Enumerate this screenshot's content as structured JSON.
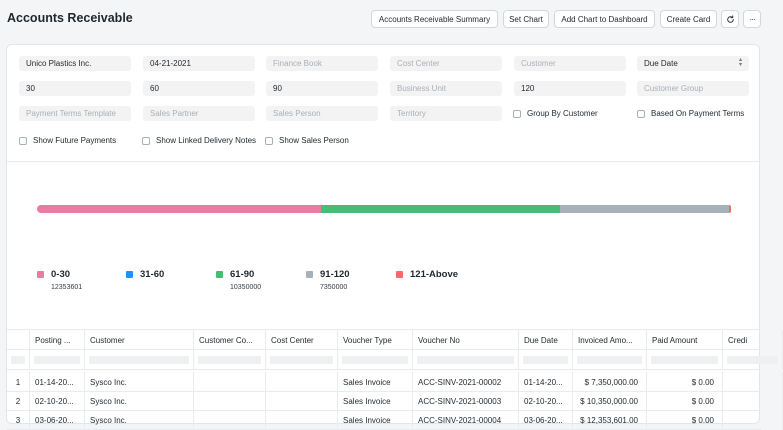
{
  "header": {
    "title": "Accounts Receivable",
    "buttons": {
      "summary": "Accounts Receivable Summary",
      "set_chart": "Set Chart",
      "add_chart": "Add Chart to Dashboard",
      "create_card": "Create Card",
      "refresh_icon": "refresh-icon",
      "more_icon": "ellipsis-icon",
      "more_label": "···"
    }
  },
  "filters": {
    "company": "Unico Plastics Inc.",
    "report_date": "04-21-2021",
    "finance_book_ph": "Finance Book",
    "cost_center_ph": "Cost Center",
    "customer_ph": "Customer",
    "ageing_based_on": "Due Date",
    "range1": "30",
    "range2": "60",
    "range3": "90",
    "business_unit_ph": "Business Unit",
    "range4": "120",
    "customer_group_ph": "Customer Group",
    "payment_terms_template_ph": "Payment Terms Template",
    "sales_partner_ph": "Sales Partner",
    "sales_person_ph": "Sales Person",
    "territory_ph": "Territory",
    "group_by_customer": "Group By Customer",
    "based_on_payment_terms": "Based On Payment Terms",
    "show_future_payments": "Show Future Payments",
    "show_linked_delivery_notes": "Show Linked Delivery Notes",
    "show_sales_person": "Show Sales Person"
  },
  "chart_data": {
    "type": "bar",
    "stacked": true,
    "orientation": "horizontal",
    "categories": [
      "0-30",
      "31-60",
      "61-90",
      "91-120",
      "121-Above"
    ],
    "values": [
      12353601,
      0,
      10350000,
      7350000,
      100000
    ],
    "value_labels": [
      "12353601",
      "",
      "10350000",
      "7350000",
      ""
    ],
    "colors": [
      "#ec7ba4",
      "#2490ef",
      "#48bb74",
      "#a6b1b9",
      "#f56b6b"
    ],
    "legend": "bottom"
  },
  "table": {
    "columns": [
      "",
      "Posting ...",
      "Customer",
      "Customer Co...",
      "Cost Center",
      "Voucher Type",
      "Voucher No",
      "Due Date",
      "Invoiced Amo...",
      "Paid Amount",
      "Credi"
    ],
    "rows": [
      [
        "1",
        "01-14-20...",
        "Sysco Inc.",
        "",
        "",
        "Sales Invoice",
        "ACC-SINV-2021-00002",
        "01-14-20...",
        "$ 7,350,000.00",
        "$ 0.00",
        ""
      ],
      [
        "2",
        "02-10-20...",
        "Sysco Inc.",
        "",
        "",
        "Sales Invoice",
        "ACC-SINV-2021-00003",
        "02-10-20...",
        "$ 10,350,000.00",
        "$ 0.00",
        ""
      ],
      [
        "3",
        "03-06-20...",
        "Sysco Inc.",
        "",
        "",
        "Sales Invoice",
        "ACC-SINV-2021-00004",
        "03-06-20...",
        "$ 12,353,601.00",
        "$ 0.00",
        ""
      ]
    ]
  }
}
